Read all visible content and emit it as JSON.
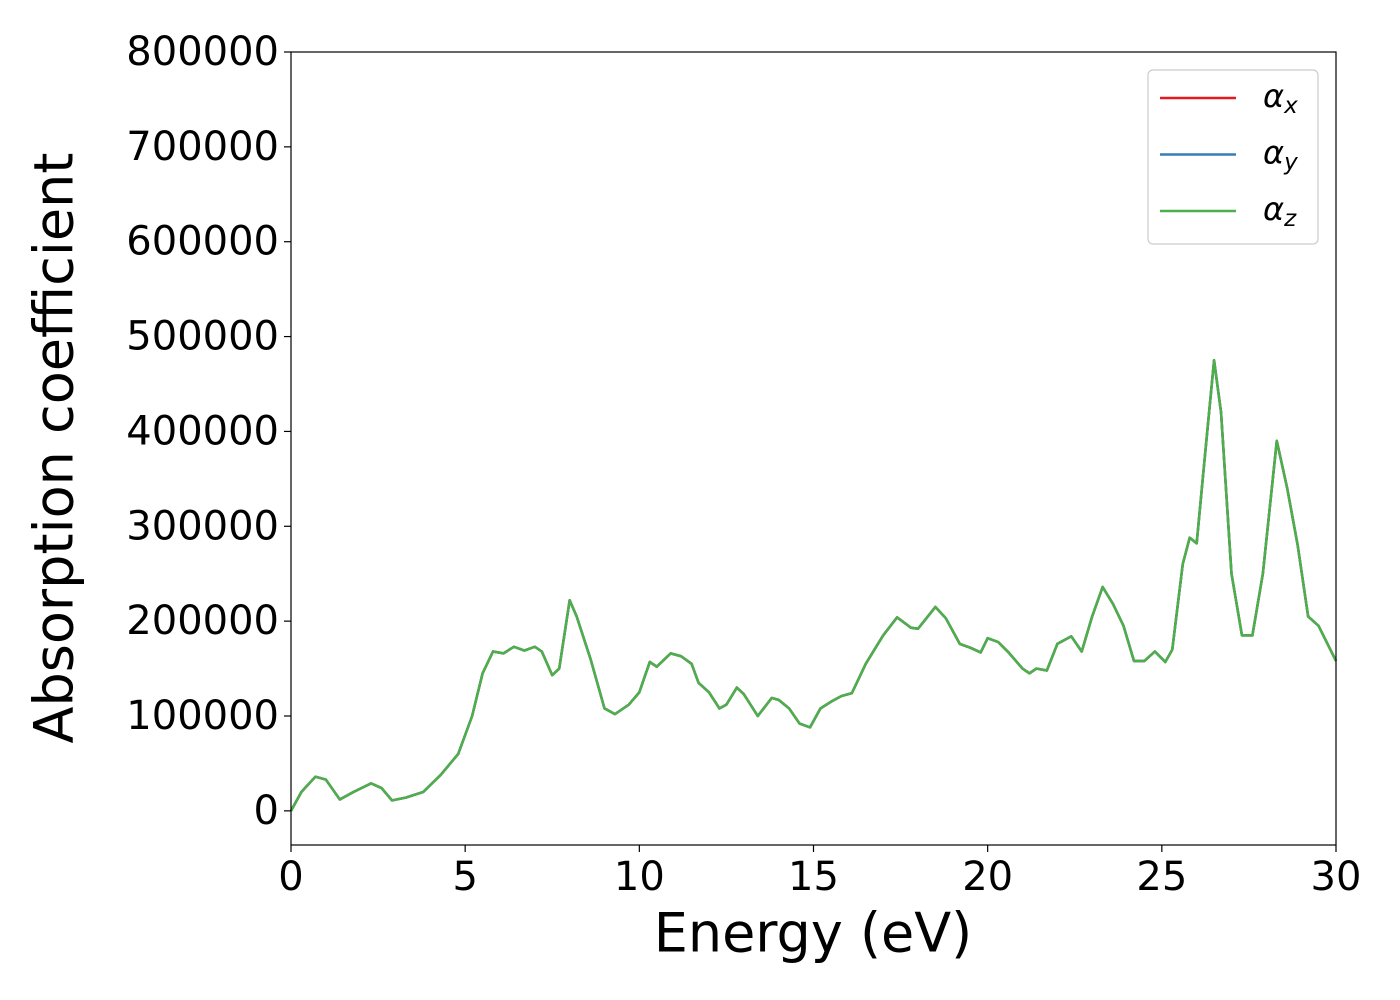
{
  "chart_data": {
    "type": "line",
    "xlabel": "Energy (eV)",
    "ylabel": "Absorption coefficient",
    "x": [
      0,
      0.3,
      0.7,
      1.0,
      1.4,
      1.8,
      2.3,
      2.6,
      2.9,
      3.3,
      3.8,
      4.3,
      4.8,
      5.2,
      5.5,
      5.8,
      6.1,
      6.4,
      6.7,
      7.0,
      7.2,
      7.5,
      7.7,
      8.0,
      8.2,
      8.6,
      9.0,
      9.3,
      9.7,
      10.0,
      10.3,
      10.5,
      10.9,
      11.2,
      11.5,
      11.7,
      12.0,
      12.3,
      12.5,
      12.8,
      13.0,
      13.4,
      13.8,
      14.0,
      14.3,
      14.6,
      14.9,
      15.2,
      15.5,
      15.8,
      16.1,
      16.5,
      17.0,
      17.4,
      17.8,
      18.0,
      18.5,
      18.8,
      19.2,
      19.5,
      19.8,
      20.0,
      20.3,
      20.6,
      21.0,
      21.2,
      21.4,
      21.7,
      22.0,
      22.4,
      22.7,
      23.0,
      23.3,
      23.6,
      23.9,
      24.2,
      24.5,
      24.8,
      25.1,
      25.3,
      25.6,
      25.8,
      26.0,
      26.2,
      26.5,
      26.7,
      27.0,
      27.3,
      27.6,
      27.9,
      28.3,
      28.6,
      28.9,
      29.2,
      29.5,
      30.0
    ],
    "series": [
      {
        "name": "αx",
        "color": "#e41a1c",
        "values": [
          0,
          20000,
          36000,
          33000,
          12000,
          20000,
          29000,
          24000,
          11000,
          14000,
          20000,
          38000,
          60000,
          100000,
          145000,
          168000,
          166000,
          173000,
          169000,
          173000,
          168000,
          143000,
          150000,
          222000,
          205000,
          160000,
          108000,
          102000,
          112000,
          125000,
          157000,
          152000,
          166000,
          163000,
          155000,
          135000,
          125000,
          108000,
          112000,
          130000,
          123000,
          100000,
          119000,
          117000,
          108000,
          92000,
          88000,
          108000,
          115000,
          121000,
          124000,
          155000,
          185000,
          204000,
          193000,
          192000,
          215000,
          203000,
          176000,
          172000,
          167000,
          182000,
          178000,
          167000,
          150000,
          145000,
          150000,
          148000,
          176000,
          184000,
          168000,
          205000,
          236000,
          218000,
          195000,
          158000,
          158000,
          168000,
          157000,
          170000,
          260000,
          288000,
          282000,
          360000,
          475000,
          420000,
          250000,
          185000,
          185000,
          250000,
          390000,
          340000,
          280000,
          205000,
          195000,
          158000
        ]
      },
      {
        "name": "αy",
        "color": "#377eb8",
        "values": [
          0,
          20000,
          36000,
          33000,
          12000,
          20000,
          29000,
          24000,
          11000,
          14000,
          20000,
          38000,
          60000,
          100000,
          145000,
          168000,
          166000,
          173000,
          169000,
          173000,
          168000,
          143000,
          150000,
          222000,
          205000,
          160000,
          108000,
          102000,
          112000,
          125000,
          157000,
          152000,
          166000,
          163000,
          155000,
          135000,
          125000,
          108000,
          112000,
          130000,
          123000,
          100000,
          119000,
          117000,
          108000,
          92000,
          88000,
          108000,
          115000,
          121000,
          124000,
          155000,
          185000,
          204000,
          193000,
          192000,
          215000,
          203000,
          176000,
          172000,
          167000,
          182000,
          178000,
          167000,
          150000,
          145000,
          150000,
          148000,
          176000,
          184000,
          168000,
          205000,
          236000,
          218000,
          195000,
          158000,
          158000,
          168000,
          157000,
          170000,
          260000,
          288000,
          282000,
          360000,
          475000,
          420000,
          250000,
          185000,
          185000,
          250000,
          390000,
          340000,
          280000,
          205000,
          195000,
          158000
        ]
      },
      {
        "name": "αz",
        "color": "#4daf4a",
        "values": [
          0,
          20000,
          36000,
          33000,
          12000,
          20000,
          29000,
          24000,
          11000,
          14000,
          20000,
          38000,
          60000,
          100000,
          145000,
          168000,
          166000,
          173000,
          169000,
          173000,
          168000,
          143000,
          150000,
          222000,
          205000,
          160000,
          108000,
          102000,
          112000,
          125000,
          157000,
          152000,
          166000,
          163000,
          155000,
          135000,
          125000,
          108000,
          112000,
          130000,
          123000,
          100000,
          119000,
          117000,
          108000,
          92000,
          88000,
          108000,
          115000,
          121000,
          124000,
          155000,
          185000,
          204000,
          193000,
          192000,
          215000,
          203000,
          176000,
          172000,
          167000,
          182000,
          178000,
          167000,
          150000,
          145000,
          150000,
          148000,
          176000,
          184000,
          168000,
          205000,
          236000,
          218000,
          195000,
          158000,
          158000,
          168000,
          157000,
          170000,
          260000,
          288000,
          282000,
          360000,
          475000,
          420000,
          250000,
          185000,
          185000,
          250000,
          390000,
          340000,
          280000,
          205000,
          195000,
          158000
        ]
      }
    ],
    "xlim": [
      0,
      30
    ],
    "xticks": [
      0,
      5,
      10,
      15,
      20,
      25,
      30
    ],
    "ylim": [
      -36000,
      800000
    ],
    "yticks": [
      0,
      100000,
      200000,
      300000,
      400000,
      500000,
      600000,
      700000,
      800000
    ],
    "legend": "upper right",
    "grid": false
  }
}
